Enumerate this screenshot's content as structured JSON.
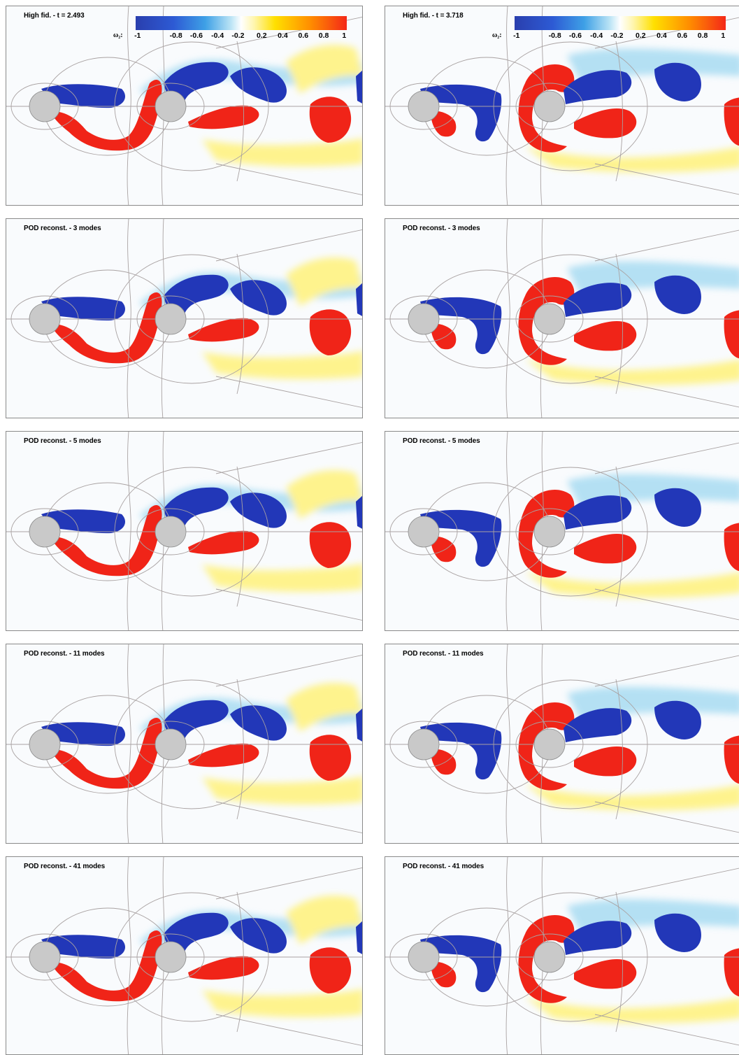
{
  "colorbar": {
    "symbol": "ω₂:",
    "ticks": [
      "-1",
      "-0.8",
      "-0.6",
      "-0.4",
      "-0.2",
      "0.2",
      "0.4",
      "0.6",
      "0.8",
      "1"
    ]
  },
  "panels": [
    {
      "title": "High fid. - t = 2.493",
      "column": "left",
      "row": 0
    },
    {
      "title": "High fid. - t = 3.718",
      "column": "right",
      "row": 0
    },
    {
      "title": "POD reconst. - 3 modes",
      "column": "left",
      "row": 1
    },
    {
      "title": "POD reconst. - 3 modes",
      "column": "right",
      "row": 1
    },
    {
      "title": "POD reconst. - 5 modes",
      "column": "left",
      "row": 2
    },
    {
      "title": "POD reconst. - 5 modes",
      "column": "right",
      "row": 2
    },
    {
      "title": "POD reconst. - 11 modes",
      "column": "left",
      "row": 3
    },
    {
      "title": "POD reconst. - 11 modes",
      "column": "right",
      "row": 3
    },
    {
      "title": "POD reconst. - 41 modes",
      "column": "left",
      "row": 4
    },
    {
      "title": "POD reconst. - 41 modes",
      "column": "right",
      "row": 4
    }
  ],
  "colors": {
    "negative": "#2237b8",
    "negative_light": "#a8dcf2",
    "positive": "#f02418",
    "positive_light": "#fff27a",
    "cylinder": "#c9c9c9",
    "mesh": "#a9a2a2"
  }
}
